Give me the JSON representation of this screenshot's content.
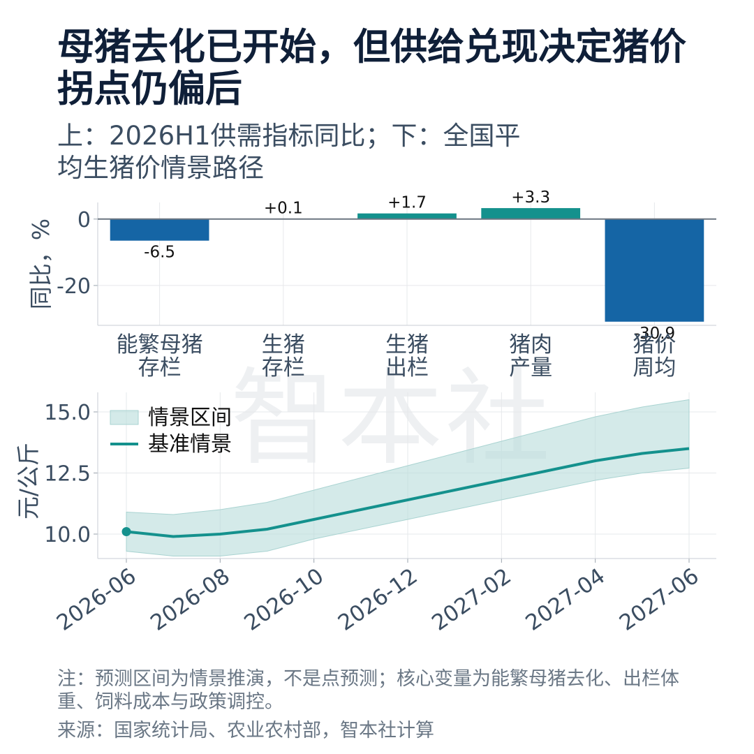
{
  "title": "母猪去化已开始，但供给兑现决定猪价拐点仍偏后",
  "subtitle": "上：2026H1供需指标同比；下：全国平均生猪价情景路径",
  "watermark": "智本社",
  "note": "注：预测区间为情景推演，不是点预测；核心变量为能繁母猪去化、出栏体重、饲料成本与政策调控。",
  "source": "来源：国家统计局、农业农村部，智本社计算",
  "colors": {
    "bar_negative": "#1565a5",
    "bar_positive": "#14918d",
    "line": "#14918d",
    "band": "#b8dcdb"
  },
  "chart_data": [
    {
      "type": "bar",
      "categories": [
        "能繁母猪\n存栏",
        "生猪\n存栏",
        "生猪\n出栏",
        "猪肉\n产量",
        "猪价\n周均"
      ],
      "values": [
        -6.5,
        0.1,
        1.7,
        3.3,
        -30.9
      ],
      "data_labels": [
        "-6.5",
        "+0.1",
        "+1.7",
        "+3.3",
        "-30.9"
      ],
      "ylabel": "同比，%",
      "yticks": [
        0,
        -20
      ],
      "ylim": [
        -32,
        5
      ],
      "grid": true
    },
    {
      "type": "area",
      "x": [
        "2026-06",
        "2026-07",
        "2026-08",
        "2026-09",
        "2026-10",
        "2026-11",
        "2026-12",
        "2027-01",
        "2027-02",
        "2027-03",
        "2027-04",
        "2027-05",
        "2027-06"
      ],
      "xticks": [
        "2026-06",
        "2026-08",
        "2026-10",
        "2026-12",
        "2027-02",
        "2027-04",
        "2027-06"
      ],
      "series": [
        {
          "name": "基准情景",
          "type": "line",
          "values": [
            10.1,
            9.9,
            10.0,
            10.2,
            10.6,
            11.0,
            11.4,
            11.8,
            12.2,
            12.6,
            13.0,
            13.3,
            13.5
          ]
        },
        {
          "name": "情景区间",
          "type": "band",
          "lower": [
            9.3,
            9.1,
            9.1,
            9.3,
            9.8,
            10.2,
            10.6,
            11.0,
            11.4,
            11.8,
            12.2,
            12.5,
            12.7
          ],
          "upper": [
            10.9,
            10.8,
            11.0,
            11.3,
            11.8,
            12.3,
            12.8,
            13.3,
            13.8,
            14.3,
            14.8,
            15.2,
            15.5
          ]
        }
      ],
      "ylabel": "元/公斤",
      "yticks": [
        10.0,
        12.5,
        15.0
      ],
      "ylim": [
        9.0,
        15.8
      ],
      "legend": "top-left",
      "grid": true
    }
  ]
}
